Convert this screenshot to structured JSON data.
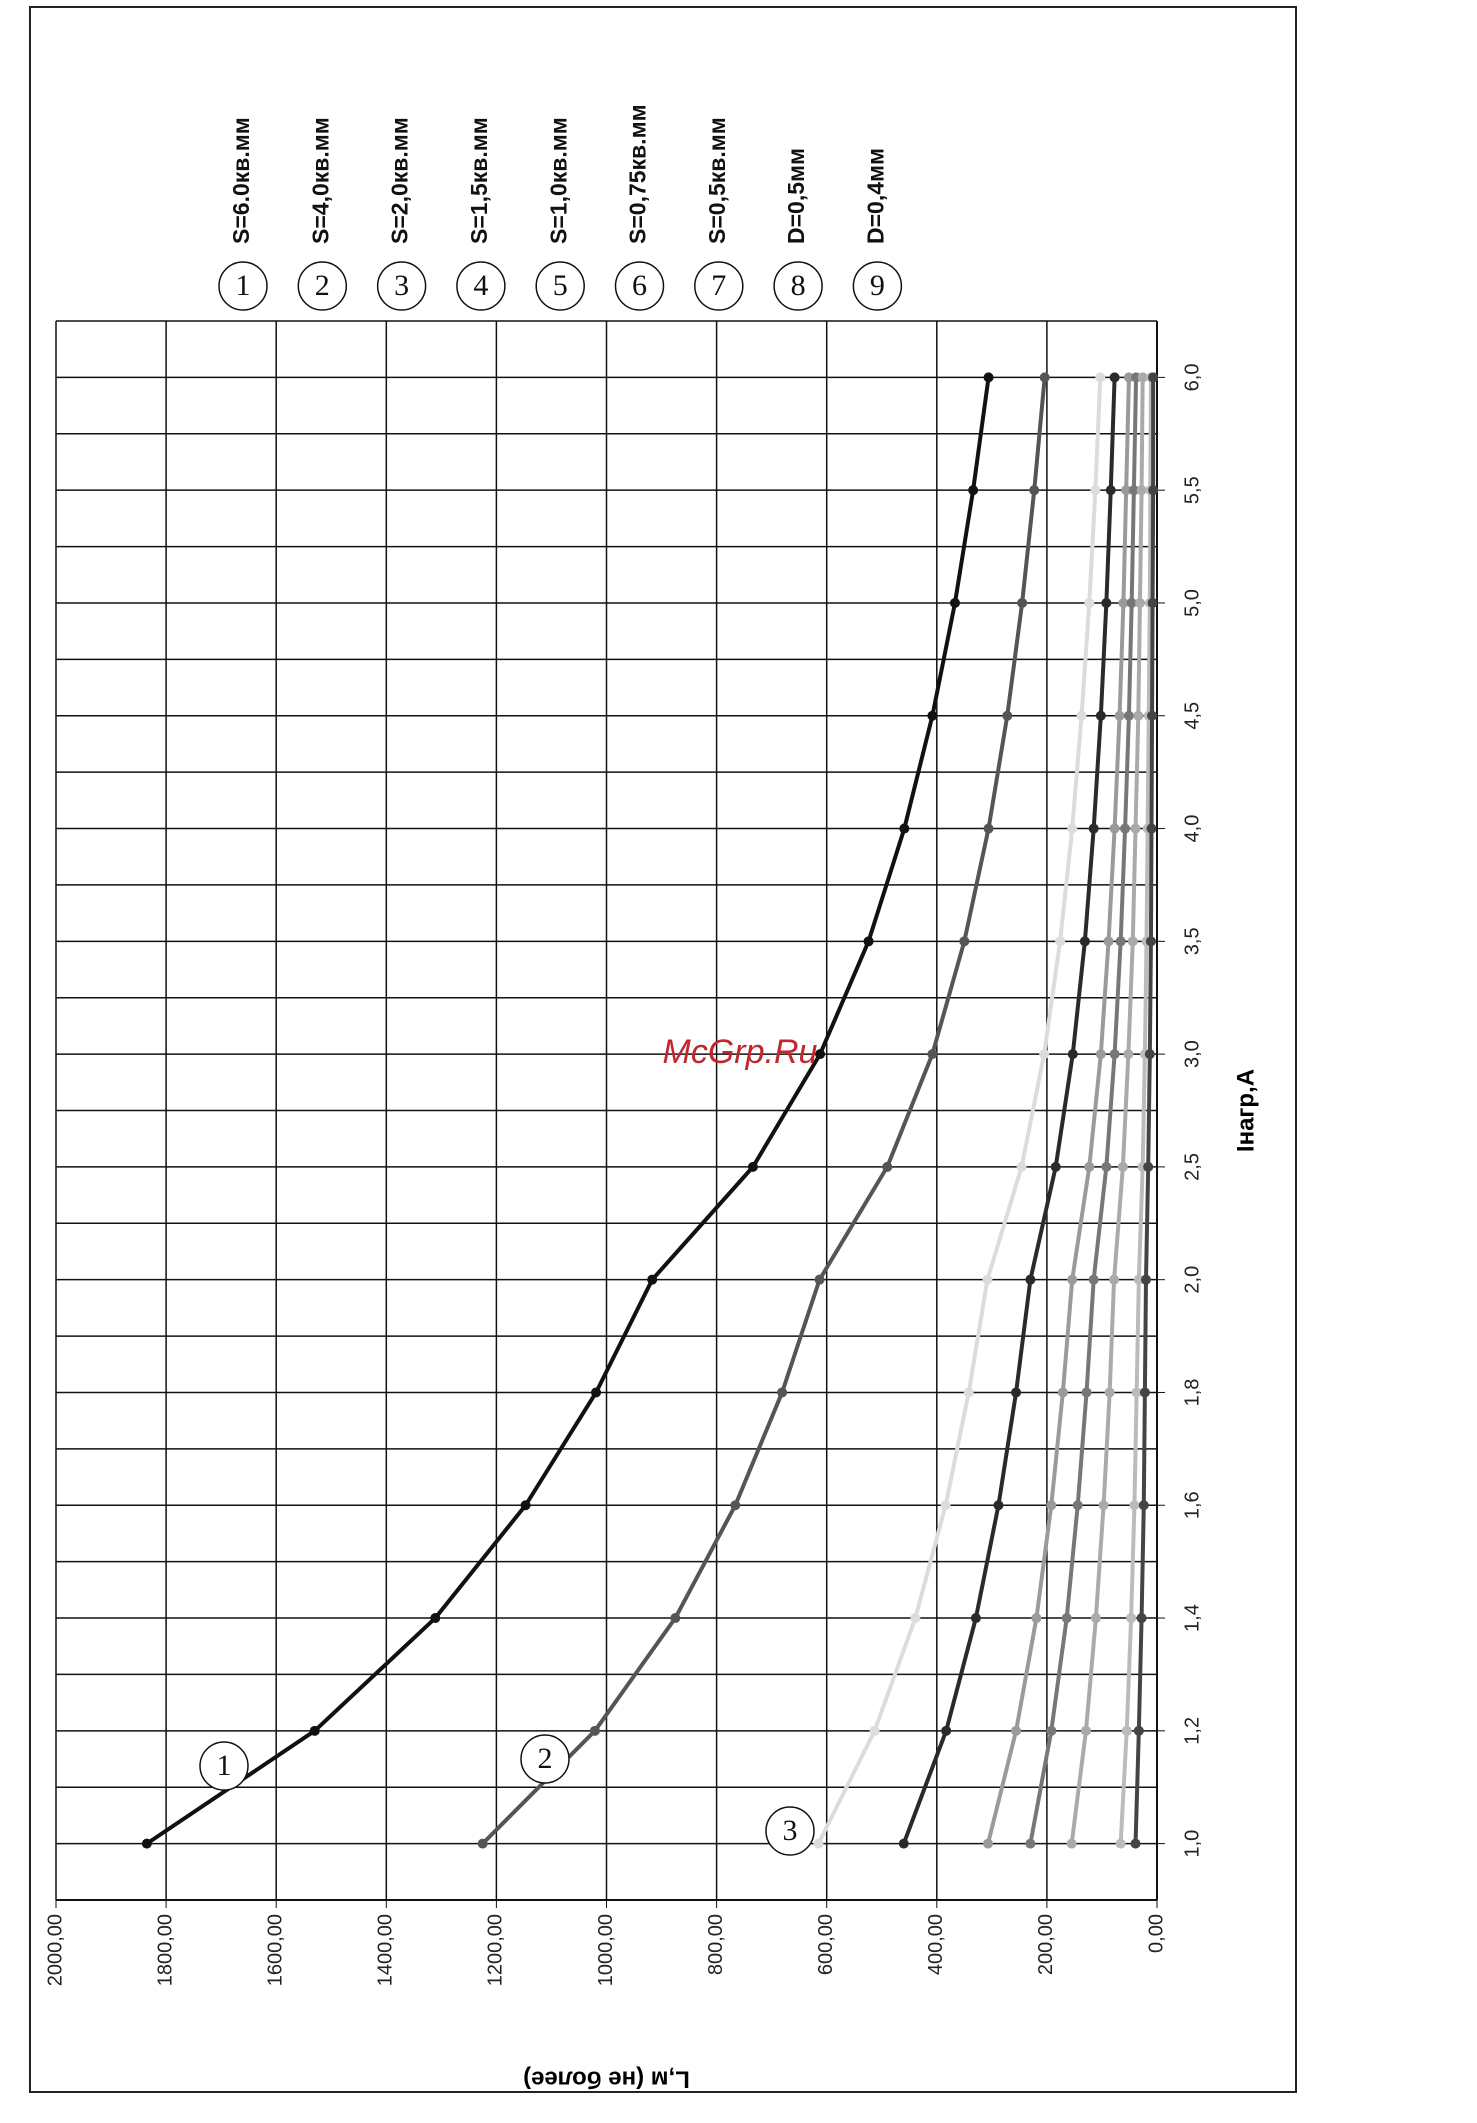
{
  "chart_data": {
    "type": "line",
    "watermark": "McGrp.Ru",
    "xlabel": "Iнагр,А",
    "ylabel": "L,м (не более)",
    "categories": [
      "1,0",
      "1,2",
      "1,4",
      "1,6",
      "1,8",
      "2,0",
      "2,5",
      "3,0",
      "3,5",
      "4,0",
      "4,5",
      "5,0",
      "5,5",
      "6,0"
    ],
    "ylim": [
      0,
      2000
    ],
    "yticks": [
      {
        "value": 0,
        "label": "0,00"
      },
      {
        "value": 200,
        "label": "200,00"
      },
      {
        "value": 400,
        "label": "400,00"
      },
      {
        "value": 600,
        "label": "600,00"
      },
      {
        "value": 800,
        "label": "800,00"
      },
      {
        "value": 1000,
        "label": "1000,00"
      },
      {
        "value": 1200,
        "label": "1200,00"
      },
      {
        "value": 1400,
        "label": "1400,00"
      },
      {
        "value": 1600,
        "label": "1600,00"
      },
      {
        "value": 1800,
        "label": "1800,00"
      },
      {
        "value": 2000,
        "label": "2000,00"
      }
    ],
    "grid": true,
    "series": [
      {
        "name": "S=6.0кв.мм",
        "label": "1",
        "color": "#111111",
        "values": [
          1835,
          1530,
          1311,
          1147,
          1019,
          917,
          734,
          612,
          524,
          459,
          408,
          367,
          334,
          306
        ]
      },
      {
        "name": "S=4,0кв.мм",
        "label": "2",
        "color": "#555555",
        "values": [
          1225,
          1021,
          875,
          766,
          681,
          613,
          490,
          408,
          350,
          306,
          272,
          245,
          223,
          204
        ]
      },
      {
        "name": "S=2,0кв.мм",
        "label": "3",
        "color": "#dcdcdc",
        "values": [
          615,
          513,
          439,
          384,
          342,
          308,
          246,
          205,
          176,
          154,
          137,
          123,
          112,
          103
        ]
      },
      {
        "name": "S=1,5кв.мм",
        "label": "4",
        "color": "#2a2a2a",
        "values": [
          460,
          383,
          329,
          288,
          256,
          230,
          184,
          153,
          131,
          115,
          102,
          92,
          84,
          77
        ]
      },
      {
        "name": "S=1,0кв.мм",
        "label": "5",
        "color": "#9a9a9a",
        "values": [
          307,
          256,
          219,
          192,
          171,
          154,
          123,
          102,
          88,
          77,
          68,
          61,
          56,
          51
        ]
      },
      {
        "name": "S=0,75кв.мм",
        "label": "6",
        "color": "#777777",
        "values": [
          230,
          192,
          164,
          144,
          128,
          115,
          92,
          77,
          66,
          58,
          51,
          46,
          42,
          38
        ]
      },
      {
        "name": "S=0,5кв.мм",
        "label": "7",
        "color": "#aaaaaa",
        "values": [
          155,
          129,
          111,
          97,
          86,
          78,
          62,
          52,
          44,
          39,
          34,
          31,
          28,
          26
        ]
      },
      {
        "name": "D=0,5мм",
        "label": "8",
        "color": "#bbbbbb",
        "values": [
          66,
          55,
          47,
          41,
          37,
          33,
          26,
          22,
          19,
          17,
          15,
          13,
          12,
          11
        ]
      },
      {
        "name": "D=0,4мм",
        "label": "9",
        "color": "#444444",
        "values": [
          39,
          33,
          28,
          24,
          22,
          20,
          16,
          13,
          11,
          10,
          9,
          8,
          7,
          7
        ]
      }
    ]
  }
}
